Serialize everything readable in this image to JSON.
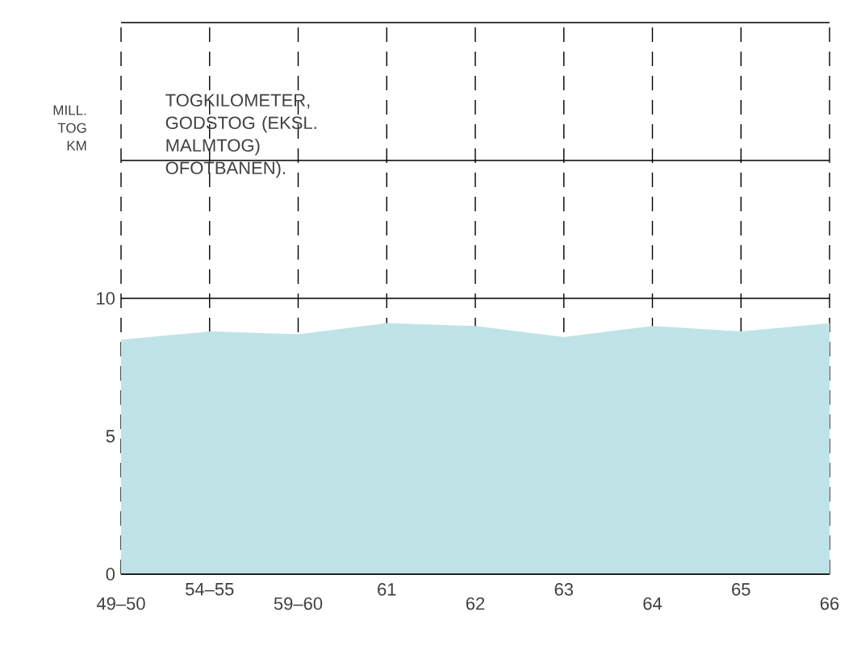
{
  "chart_data": {
    "type": "area",
    "title": "TOGKILOMETER, GODSTOG (EKSL. MALMTOG) OFOTBANEN).",
    "ylabel": "MILL. TOG KM",
    "categories": [
      "49–50",
      "54–55",
      "59–60",
      "61",
      "62",
      "63",
      "64",
      "65",
      "66"
    ],
    "values": [
      8.5,
      8.8,
      8.7,
      9.1,
      9.0,
      8.6,
      9.0,
      8.8,
      9.1
    ],
    "color": "#bfe3e6",
    "ylim": [
      0,
      20
    ],
    "yticks": [
      0,
      5,
      10,
      {
        "value": 15,
        "label": null
      },
      {
        "value": 20,
        "label": null
      }
    ],
    "grid": true
  }
}
